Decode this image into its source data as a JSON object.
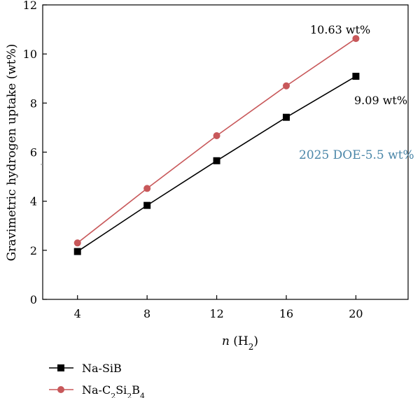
{
  "chart_data": {
    "type": "line",
    "xlabel_italic": "n",
    "xlabel_rest": " (H",
    "xlabel_sub": "2",
    "xlabel_close": ")",
    "ylabel": "Gravimetric hydrogen uptake (wt%)",
    "x": [
      4,
      8,
      12,
      16,
      20
    ],
    "xticks": [
      4,
      8,
      12,
      16,
      20
    ],
    "yticks": [
      0,
      2,
      4,
      6,
      8,
      10,
      12
    ],
    "xlim": [
      2,
      23
    ],
    "ylim": [
      0,
      12
    ],
    "grid": false,
    "legend_position": "bottom-left, below plot",
    "series": [
      {
        "name": "Na-SiB",
        "marker": "square",
        "color": "#000000",
        "values": [
          1.95,
          3.83,
          5.65,
          7.42,
          9.09
        ]
      },
      {
        "name": "Na-C2Si2B4",
        "marker": "circle",
        "color": "#c8585a",
        "values": [
          2.3,
          4.52,
          6.67,
          8.7,
          10.63
        ]
      }
    ],
    "annotations": {
      "top_label": "10.63 wt%",
      "lower_label": "9.09 wt%",
      "doe_label": "2025 DOE-5.5 wt%",
      "doe_color": "#4a86a8",
      "doe_value": 5.5
    },
    "legend": {
      "sib_label": "Na-SiB",
      "c2_prefix": "Na-C",
      "c2_sub1": "2",
      "c2_mid": "Si",
      "c2_sub2": "2",
      "c2_mid2": "B",
      "c2_sub3": "4"
    }
  }
}
